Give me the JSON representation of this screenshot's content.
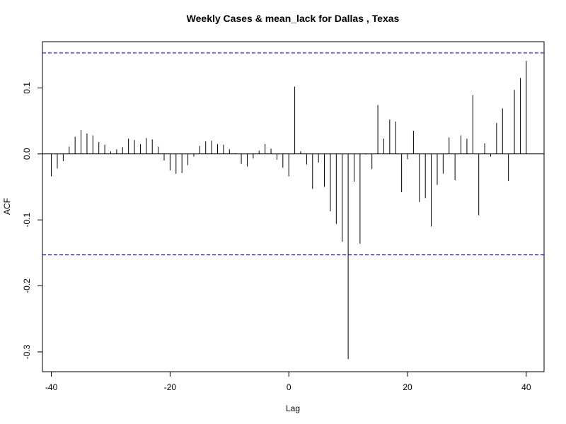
{
  "chart_data": {
    "type": "bar",
    "title": "Weekly Cases & mean_lack for Dallas , Texas",
    "xlabel": "Lag",
    "ylabel": "ACF",
    "xlim": [
      -41.5,
      43.0
    ],
    "ylim": [
      -0.33,
      0.17
    ],
    "x_ticks": [
      -40,
      -20,
      0,
      20,
      40
    ],
    "x_tick_labels": [
      "-40",
      "-20",
      "0",
      "20",
      "40"
    ],
    "y_ticks": [
      -0.3,
      -0.2,
      -0.1,
      0.0,
      0.1
    ],
    "y_tick_labels": [
      "-0.3",
      "-0.2",
      "-0.1",
      "0.0",
      "0.1"
    ],
    "confidence_bounds": [
      0.153,
      -0.153
    ],
    "colors": {
      "bars": "#000000",
      "bounds": "#0000cc",
      "zero_line": "#000000"
    },
    "grid": false,
    "lags": [
      -40,
      -39,
      -38,
      -37,
      -36,
      -35,
      -34,
      -33,
      -32,
      -31,
      -30,
      -29,
      -28,
      -27,
      -26,
      -25,
      -24,
      -23,
      -22,
      -21,
      -20,
      -19,
      -18,
      -17,
      -16,
      -15,
      -14,
      -13,
      -12,
      -11,
      -10,
      -9,
      -8,
      -7,
      -6,
      -5,
      -4,
      -3,
      -2,
      -1,
      0,
      1,
      2,
      3,
      4,
      5,
      6,
      7,
      8,
      9,
      10,
      11,
      12,
      13,
      14,
      15,
      16,
      17,
      18,
      19,
      20,
      21,
      22,
      23,
      24,
      25,
      26,
      27,
      28,
      29,
      30,
      31,
      32,
      33,
      34,
      35,
      36,
      37,
      38,
      39,
      40
    ],
    "values": [
      -0.034,
      -0.022,
      -0.011,
      0.011,
      0.026,
      0.036,
      0.031,
      0.028,
      0.018,
      0.014,
      0.004,
      0.007,
      0.01,
      0.023,
      0.021,
      0.015,
      0.024,
      0.022,
      0.011,
      -0.01,
      -0.025,
      -0.03,
      -0.029,
      -0.017,
      -0.004,
      0.012,
      0.019,
      0.02,
      0.015,
      0.014,
      0.007,
      0.001,
      -0.015,
      -0.019,
      -0.007,
      0.005,
      0.015,
      0.008,
      -0.009,
      -0.021,
      -0.034,
      0.102,
      0.004,
      -0.016,
      -0.053,
      -0.013,
      -0.05,
      -0.087,
      -0.106,
      -0.133,
      -0.311,
      -0.042,
      -0.136,
      -0.001,
      -0.023,
      0.074,
      0.023,
      0.052,
      0.049,
      -0.058,
      -0.008,
      0.035,
      -0.073,
      -0.067,
      -0.11,
      -0.047,
      -0.03,
      0.025,
      -0.04,
      0.028,
      0.023,
      0.089,
      -0.093,
      0.016,
      -0.004,
      0.047,
      0.069,
      -0.041,
      0.097,
      0.115,
      0.141
    ]
  }
}
